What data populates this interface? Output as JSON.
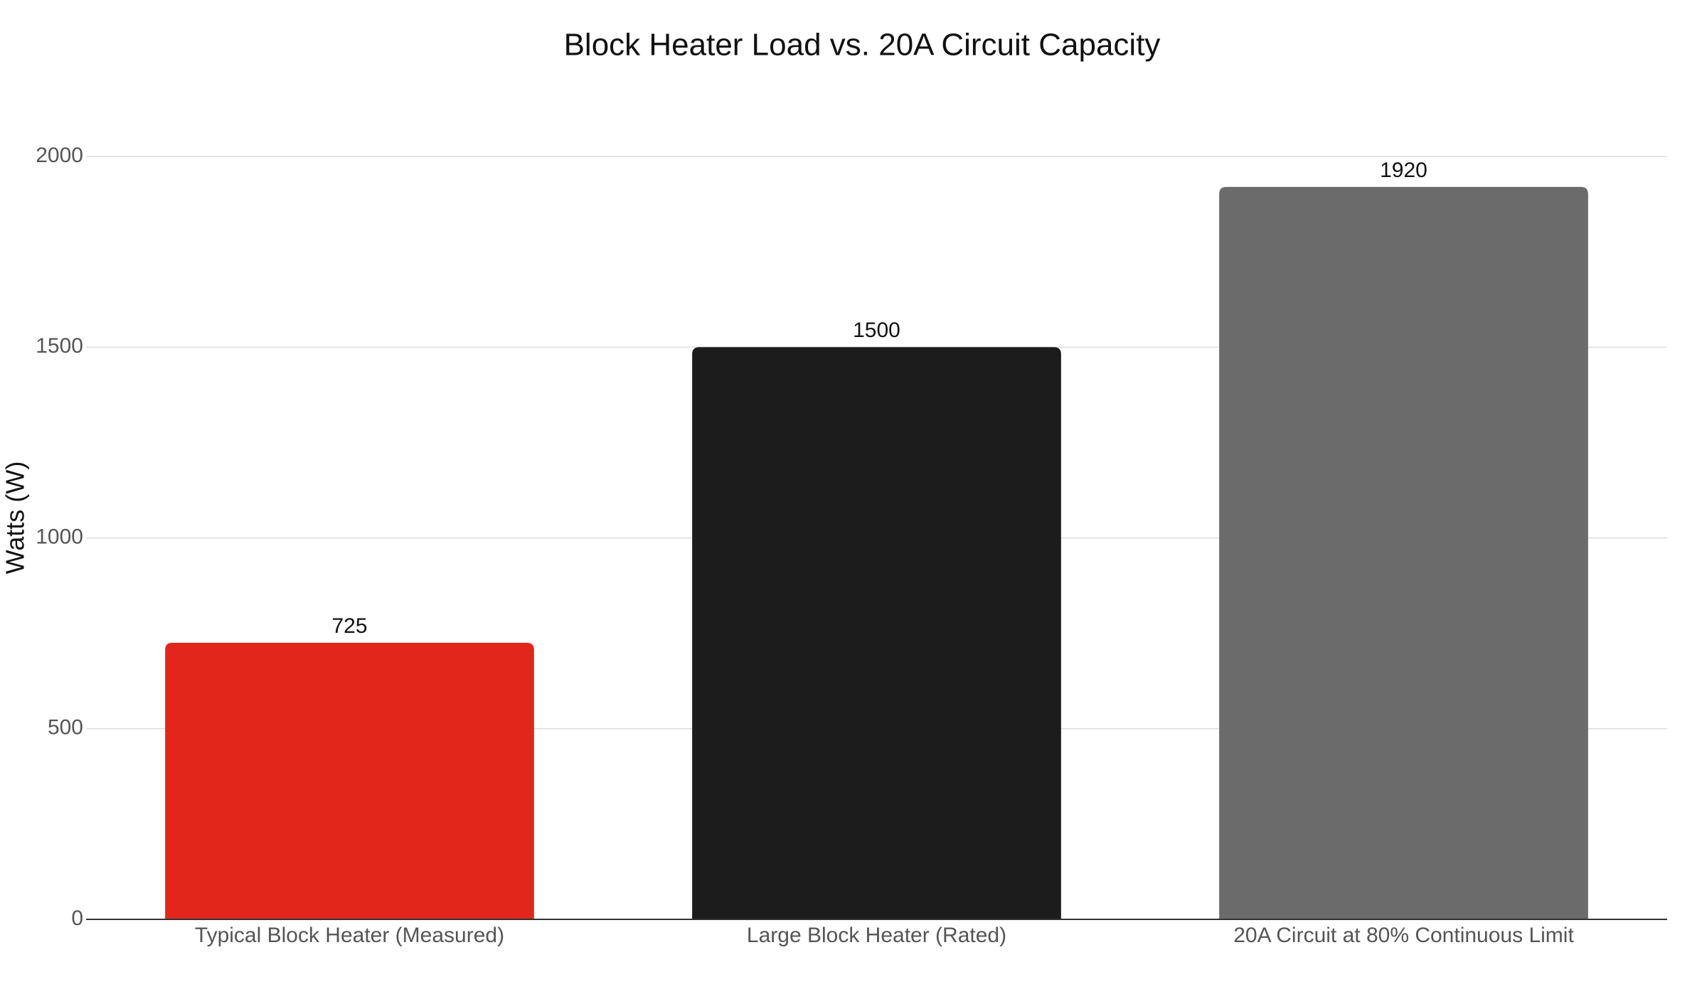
{
  "chart_data": {
    "type": "bar",
    "title": "Block Heater Load vs. 20A Circuit Capacity",
    "y_label": "Watts (W)",
    "categories": [
      "Typical Block Heater (Measured)",
      "Large Block Heater (Rated)",
      "20A Circuit at 80% Continuous Limit"
    ],
    "values": [
      725,
      1500,
      1920
    ],
    "colors": [
      "#e2261c",
      "#1c1c1c",
      "#6b6b6b"
    ],
    "ylim": [
      0,
      2000
    ],
    "yticks": [
      0,
      500,
      1000,
      1500,
      2000
    ],
    "grid": true
  }
}
